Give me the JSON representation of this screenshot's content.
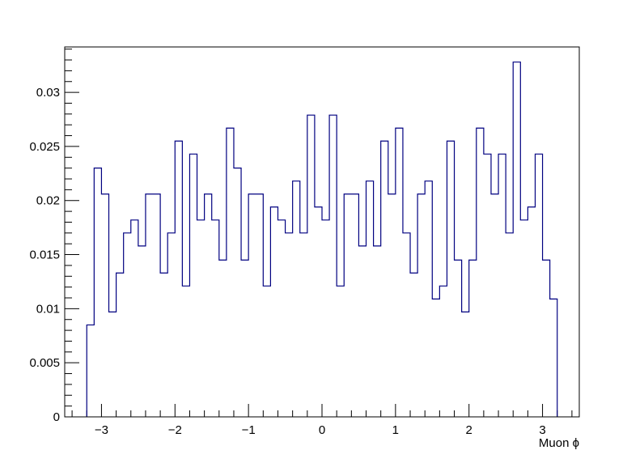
{
  "chart_data": {
    "type": "bar",
    "style": "step-histogram",
    "title": "",
    "xlabel": "Muon ϕ",
    "ylabel": "",
    "xlim": [
      -3.5,
      3.5
    ],
    "ylim": [
      0,
      0.0342
    ],
    "grid": false,
    "legend": "none",
    "line_color": "#000080",
    "bin_edges_range": [
      -3.2,
      3.2
    ],
    "bin_count": 64,
    "values": [
      0.0085,
      0.023,
      0.0206,
      0.0097,
      0.0133,
      0.017,
      0.0182,
      0.0158,
      0.0206,
      0.0206,
      0.0133,
      0.017,
      0.0255,
      0.0121,
      0.0243,
      0.0182,
      0.0206,
      0.0182,
      0.0145,
      0.0267,
      0.023,
      0.0145,
      0.0206,
      0.0206,
      0.0121,
      0.0194,
      0.0182,
      0.017,
      0.0218,
      0.017,
      0.0279,
      0.0194,
      0.0182,
      0.0279,
      0.0121,
      0.0206,
      0.0206,
      0.0158,
      0.0218,
      0.0158,
      0.0255,
      0.0206,
      0.0267,
      0.017,
      0.0133,
      0.0206,
      0.0218,
      0.0109,
      0.0121,
      0.0255,
      0.0145,
      0.0097,
      0.0145,
      0.0267,
      0.0243,
      0.0206,
      0.0243,
      0.017,
      0.0328,
      0.0182,
      0.0194,
      0.0243,
      0.0145,
      0.0109
    ],
    "x_ticks": [
      {
        "value": -3,
        "label": "−3"
      },
      {
        "value": -2,
        "label": "−2"
      },
      {
        "value": -1,
        "label": "−1"
      },
      {
        "value": 0,
        "label": "0"
      },
      {
        "value": 1,
        "label": "1"
      },
      {
        "value": 2,
        "label": "2"
      },
      {
        "value": 3,
        "label": "3"
      }
    ],
    "y_ticks": [
      {
        "value": 0,
        "label": "0"
      },
      {
        "value": 0.005,
        "label": "0.005"
      },
      {
        "value": 0.01,
        "label": "0.01"
      },
      {
        "value": 0.015,
        "label": "0.015"
      },
      {
        "value": 0.02,
        "label": "0.02"
      },
      {
        "value": 0.025,
        "label": "0.025"
      },
      {
        "value": 0.03,
        "label": "0.03"
      }
    ]
  }
}
